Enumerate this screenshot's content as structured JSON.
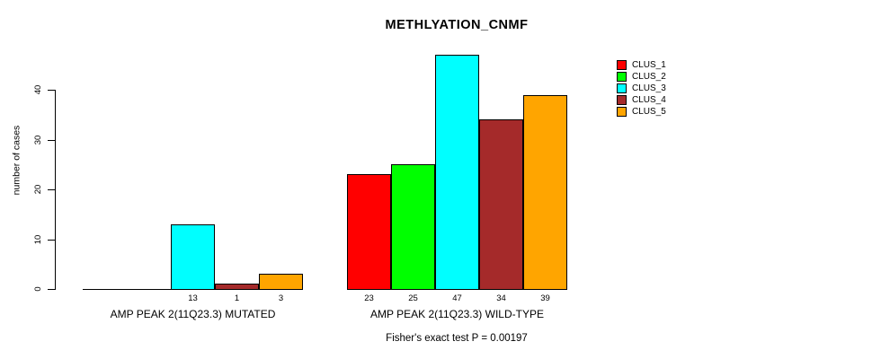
{
  "title": "METHLYATION_CNMF",
  "footer": "Fisher's exact test P = 0.00197",
  "chart_data": {
    "type": "bar",
    "title": "METHLYATION_CNMF",
    "xlabel": "",
    "ylabel": "number of cases",
    "yticks": [
      0,
      10,
      20,
      30,
      40
    ],
    "ylim": [
      0,
      47
    ],
    "grid": false,
    "legend_position": "right",
    "series_names": [
      "CLUS_1",
      "CLUS_2",
      "CLUS_3",
      "CLUS_4",
      "CLUS_5"
    ],
    "colors": [
      "#ff0000",
      "#00ff00",
      "#00ffff",
      "#a52a2a",
      "#ffa500"
    ],
    "groups": [
      {
        "label": "AMP PEAK 2(11Q23.3) MUTATED",
        "values": [
          0,
          0,
          13,
          1,
          3
        ],
        "shown_value_labels": [
          "13",
          "1",
          "3"
        ]
      },
      {
        "label": "AMP PEAK 2(11Q23.3) WILD-TYPE",
        "values": [
          23,
          25,
          47,
          34,
          39
        ],
        "shown_value_labels": [
          "23",
          "25",
          "47",
          "34",
          "39"
        ]
      }
    ],
    "annotation": "Fisher's exact test P = 0.00197"
  }
}
